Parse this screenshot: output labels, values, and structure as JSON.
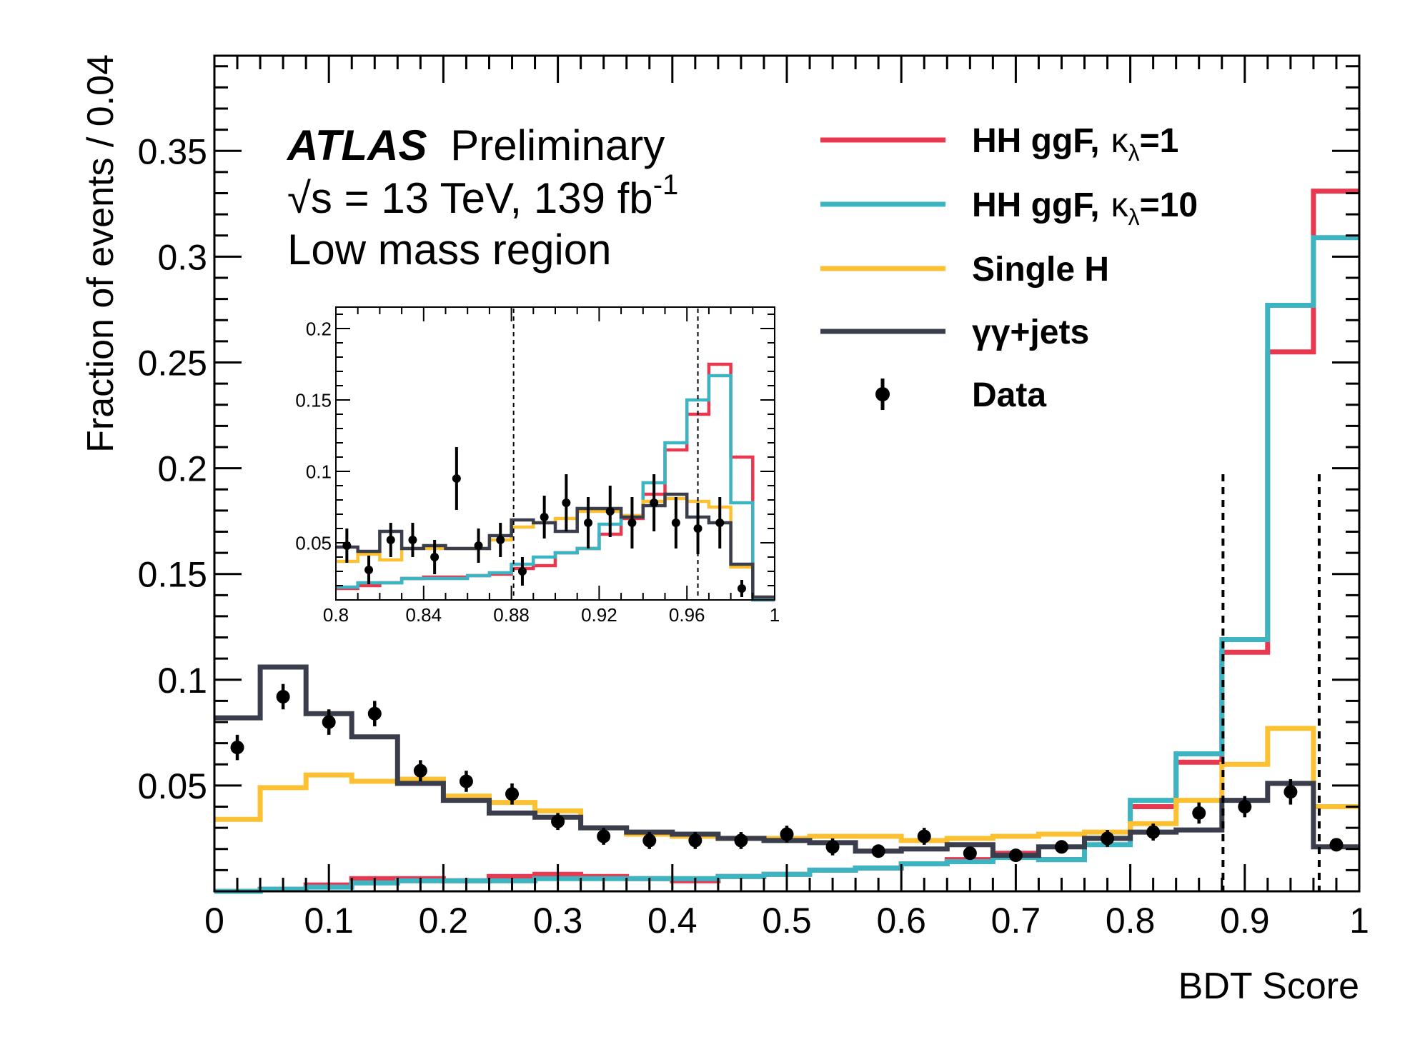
{
  "atlas": {
    "bold": "ATLAS",
    "label": "Preliminary"
  },
  "energy": {
    "sqrt": "√s",
    "rest": " = 13 TeV, 139 fb",
    "sup": "-1"
  },
  "region": "Low mass region",
  "legend": [
    {
      "id": "hh1",
      "text": "HH ggF,",
      "kappa": "κ",
      "sub": "λ",
      "tail": "=1",
      "color": "#e8384f",
      "kind": "line"
    },
    {
      "id": "hh10",
      "text": "HH ggF,",
      "kappa": "κ",
      "sub": "λ",
      "tail": "=10",
      "color": "#3cb4c2",
      "kind": "line"
    },
    {
      "id": "singleh",
      "text": "Single H",
      "color": "#fbc133",
      "kind": "line"
    },
    {
      "id": "gg",
      "text": "γγ+jets",
      "color": "#3a3e4c",
      "kind": "line"
    },
    {
      "id": "data",
      "text": "Data",
      "color": "#000000",
      "kind": "marker"
    }
  ],
  "chart_data": {
    "type": "histogram",
    "title": "",
    "xlabel": "BDT Score",
    "ylabel": "Fraction of events / 0.04",
    "xlim": [
      0,
      1
    ],
    "ylim": [
      0,
      0.395
    ],
    "xticks": [
      "0",
      "0.1",
      "0.2",
      "0.3",
      "0.4",
      "0.5",
      "0.6",
      "0.7",
      "0.8",
      "0.9",
      "1"
    ],
    "yticks": [
      "0.05",
      "0.1",
      "0.15",
      "0.2",
      "0.25",
      "0.3",
      "0.35"
    ],
    "bin_edges": [
      0,
      0.04,
      0.08,
      0.12,
      0.16,
      0.2,
      0.24,
      0.28,
      0.32,
      0.36,
      0.4,
      0.44,
      0.48,
      0.52,
      0.56,
      0.6,
      0.64,
      0.68,
      0.72,
      0.76,
      0.8,
      0.84,
      0.88,
      0.92,
      0.96,
      1.0
    ],
    "series": [
      {
        "name": "HH ggF, κλ=1",
        "color": "#e8384f",
        "values": [
          0.0,
          0.001,
          0.003,
          0.006,
          0.006,
          0.005,
          0.007,
          0.008,
          0.007,
          0.006,
          0.005,
          0.007,
          0.008,
          0.01,
          0.011,
          0.013,
          0.015,
          0.018,
          0.015,
          0.025,
          0.04,
          0.061,
          0.113,
          0.255,
          0.331
        ]
      },
      {
        "name": "HH ggF, κλ=10",
        "color": "#3cb4c2",
        "values": [
          0.0,
          0.001,
          0.002,
          0.004,
          0.005,
          0.005,
          0.005,
          0.006,
          0.006,
          0.006,
          0.006,
          0.007,
          0.008,
          0.01,
          0.011,
          0.013,
          0.014,
          0.016,
          0.015,
          0.022,
          0.043,
          0.065,
          0.119,
          0.277,
          0.309
        ]
      },
      {
        "name": "Single H",
        "color": "#fbc133",
        "values": [
          0.034,
          0.049,
          0.055,
          0.052,
          0.053,
          0.045,
          0.042,
          0.038,
          0.03,
          0.027,
          0.026,
          0.025,
          0.025,
          0.026,
          0.026,
          0.024,
          0.025,
          0.026,
          0.027,
          0.028,
          0.032,
          0.043,
          0.06,
          0.077,
          0.04
        ]
      },
      {
        "name": "γγ+jets",
        "color": "#3a3e4c",
        "values": [
          0.082,
          0.106,
          0.084,
          0.073,
          0.051,
          0.043,
          0.037,
          0.035,
          0.03,
          0.028,
          0.027,
          0.025,
          0.024,
          0.023,
          0.019,
          0.02,
          0.022,
          0.017,
          0.021,
          0.025,
          0.028,
          0.029,
          0.043,
          0.051,
          0.021
        ]
      }
    ],
    "data_points": {
      "name": "Data",
      "x": [
        0.02,
        0.06,
        0.1,
        0.14,
        0.18,
        0.22,
        0.26,
        0.3,
        0.34,
        0.38,
        0.42,
        0.46,
        0.5,
        0.54,
        0.58,
        0.62,
        0.66,
        0.7,
        0.74,
        0.78,
        0.82,
        0.86,
        0.9,
        0.94,
        0.98
      ],
      "y": [
        0.068,
        0.092,
        0.08,
        0.084,
        0.057,
        0.052,
        0.046,
        0.033,
        0.026,
        0.024,
        0.024,
        0.024,
        0.027,
        0.021,
        0.019,
        0.026,
        0.018,
        0.017,
        0.021,
        0.025,
        0.028,
        0.037,
        0.04,
        0.047,
        0.022
      ],
      "err": [
        0.006,
        0.006,
        0.006,
        0.006,
        0.005,
        0.005,
        0.005,
        0.004,
        0.004,
        0.004,
        0.004,
        0.004,
        0.004,
        0.004,
        0.003,
        0.004,
        0.003,
        0.003,
        0.003,
        0.004,
        0.004,
        0.005,
        0.005,
        0.006,
        0.003
      ]
    },
    "vlines": [
      0.881,
      0.965
    ],
    "inset": {
      "xlim": [
        0.8,
        1.0
      ],
      "ylim": [
        0.01,
        0.215
      ],
      "xticks": [
        "0.8",
        "0.84",
        "0.88",
        "0.92",
        "0.96",
        "1"
      ],
      "yticks": [
        "0.05",
        "0.1",
        "0.15",
        "0.2"
      ],
      "bin_edges": [
        0.8,
        0.81,
        0.82,
        0.83,
        0.84,
        0.85,
        0.86,
        0.87,
        0.88,
        0.89,
        0.9,
        0.91,
        0.92,
        0.93,
        0.94,
        0.95,
        0.96,
        0.97,
        0.98,
        0.99,
        1.0
      ],
      "series": [
        {
          "name": "HH ggF, κλ=1",
          "color": "#e8384f",
          "values": [
            0.018,
            0.02,
            0.022,
            0.025,
            0.026,
            0.026,
            0.027,
            0.028,
            0.032,
            0.034,
            0.043,
            0.046,
            0.056,
            0.067,
            0.084,
            0.115,
            0.14,
            0.175,
            0.11,
            0.01
          ]
        },
        {
          "name": "HH ggF, κλ=10",
          "color": "#3cb4c2",
          "values": [
            0.019,
            0.022,
            0.022,
            0.025,
            0.025,
            0.025,
            0.027,
            0.029,
            0.035,
            0.04,
            0.043,
            0.046,
            0.063,
            0.069,
            0.092,
            0.12,
            0.15,
            0.167,
            0.078,
            0.01
          ]
        },
        {
          "name": "Single H",
          "color": "#fbc133",
          "values": [
            0.037,
            0.042,
            0.038,
            0.046,
            0.046,
            0.046,
            0.046,
            0.052,
            0.061,
            0.064,
            0.067,
            0.072,
            0.072,
            0.069,
            0.079,
            0.081,
            0.079,
            0.075,
            0.033,
            0.012
          ]
        },
        {
          "name": "γγ+jets",
          "color": "#3a3e4c",
          "values": [
            0.047,
            0.044,
            0.058,
            0.046,
            0.048,
            0.046,
            0.046,
            0.055,
            0.066,
            0.064,
            0.058,
            0.074,
            0.074,
            0.068,
            0.076,
            0.084,
            0.068,
            0.064,
            0.035,
            0.012
          ]
        }
      ],
      "data_points": {
        "x": [
          0.805,
          0.815,
          0.825,
          0.835,
          0.845,
          0.855,
          0.865,
          0.875,
          0.885,
          0.895,
          0.905,
          0.915,
          0.925,
          0.935,
          0.945,
          0.955,
          0.965,
          0.975,
          0.985
        ],
        "y": [
          0.048,
          0.031,
          0.052,
          0.052,
          0.04,
          0.095,
          0.048,
          0.052,
          0.03,
          0.068,
          0.078,
          0.064,
          0.072,
          0.064,
          0.078,
          0.064,
          0.06,
          0.064,
          0.018
        ],
        "err": [
          0.012,
          0.01,
          0.012,
          0.012,
          0.012,
          0.022,
          0.012,
          0.012,
          0.01,
          0.015,
          0.02,
          0.018,
          0.018,
          0.018,
          0.02,
          0.018,
          0.018,
          0.018,
          0.006
        ]
      },
      "vlines": [
        0.881,
        0.965
      ]
    }
  }
}
